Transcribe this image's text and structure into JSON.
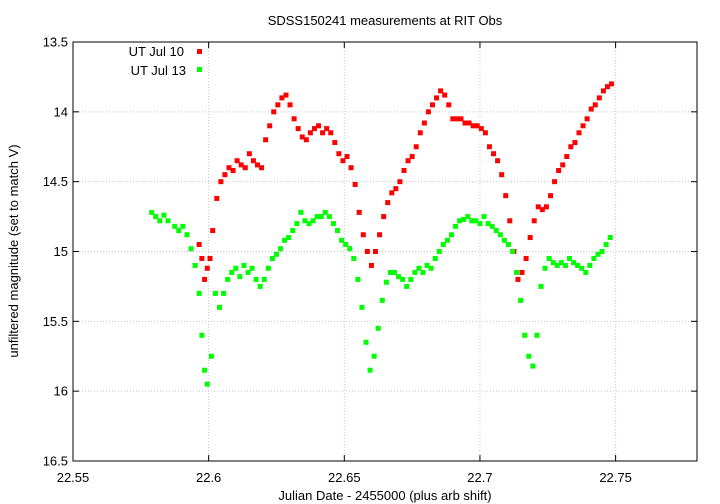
{
  "chart_data": {
    "type": "scatter",
    "title": "SDSS150241 measurements at RIT Obs",
    "xlabel": "Julian Date - 2455000 (plus arb shift)",
    "ylabel": "unfiltered magnitude (set to match V)",
    "xlim": [
      22.55,
      22.78
    ],
    "ylim": [
      13.5,
      16.5
    ],
    "y_inverted": true,
    "grid": true,
    "legend_position": "top-left",
    "xticks": [
      "22.55",
      "22.6",
      "22.65",
      "22.7",
      "22.75"
    ],
    "yticks": [
      "13.5",
      "14",
      "14.5",
      "15",
      "15.5",
      "16",
      "16.5"
    ],
    "series": [
      {
        "name": "UT Jul 10",
        "color": "#ff0000",
        "marker": "square",
        "points": [
          [
            22.5965,
            14.95
          ],
          [
            22.5975,
            15.05
          ],
          [
            22.5985,
            15.2
          ],
          [
            22.5995,
            15.12
          ],
          [
            22.6005,
            15.05
          ],
          [
            22.6015,
            14.85
          ],
          [
            22.603,
            14.62
          ],
          [
            22.6045,
            14.5
          ],
          [
            22.606,
            14.45
          ],
          [
            22.6075,
            14.4
          ],
          [
            22.609,
            14.42
          ],
          [
            22.6105,
            14.35
          ],
          [
            22.612,
            14.38
          ],
          [
            22.6135,
            14.4
          ],
          [
            22.615,
            14.3
          ],
          [
            22.6165,
            14.35
          ],
          [
            22.618,
            14.38
          ],
          [
            22.6195,
            14.4
          ],
          [
            22.621,
            14.2
          ],
          [
            22.6225,
            14.1
          ],
          [
            22.624,
            14.0
          ],
          [
            22.6255,
            13.95
          ],
          [
            22.627,
            13.9
          ],
          [
            22.6285,
            13.88
          ],
          [
            22.63,
            13.95
          ],
          [
            22.6315,
            14.05
          ],
          [
            22.633,
            14.12
          ],
          [
            22.6345,
            14.18
          ],
          [
            22.636,
            14.2
          ],
          [
            22.6375,
            14.15
          ],
          [
            22.639,
            14.12
          ],
          [
            22.6405,
            14.1
          ],
          [
            22.642,
            14.15
          ],
          [
            22.6435,
            14.12
          ],
          [
            22.645,
            14.15
          ],
          [
            22.6465,
            14.22
          ],
          [
            22.648,
            14.3
          ],
          [
            22.6495,
            14.35
          ],
          [
            22.651,
            14.32
          ],
          [
            22.6525,
            14.4
          ],
          [
            22.654,
            14.52
          ],
          [
            22.6555,
            14.72
          ],
          [
            22.657,
            14.88
          ],
          [
            22.6585,
            15.0
          ],
          [
            22.66,
            15.1
          ],
          [
            22.6615,
            15.0
          ],
          [
            22.663,
            14.88
          ],
          [
            22.6645,
            14.75
          ],
          [
            22.666,
            14.65
          ],
          [
            22.6675,
            14.58
          ],
          [
            22.669,
            14.55
          ],
          [
            22.6705,
            14.5
          ],
          [
            22.672,
            14.42
          ],
          [
            22.6735,
            14.35
          ],
          [
            22.675,
            14.32
          ],
          [
            22.6765,
            14.25
          ],
          [
            22.678,
            14.15
          ],
          [
            22.6795,
            14.08
          ],
          [
            22.681,
            14.0
          ],
          [
            22.6825,
            13.95
          ],
          [
            22.684,
            13.9
          ],
          [
            22.6855,
            13.85
          ],
          [
            22.687,
            13.88
          ],
          [
            22.6885,
            13.95
          ],
          [
            22.69,
            14.05
          ],
          [
            22.6915,
            14.05
          ],
          [
            22.693,
            14.05
          ],
          [
            22.6945,
            14.08
          ],
          [
            22.696,
            14.08
          ],
          [
            22.6975,
            14.1
          ],
          [
            22.699,
            14.1
          ],
          [
            22.7005,
            14.12
          ],
          [
            22.702,
            14.15
          ],
          [
            22.7035,
            14.25
          ],
          [
            22.705,
            14.3
          ],
          [
            22.7065,
            14.35
          ],
          [
            22.708,
            14.45
          ],
          [
            22.7095,
            14.6
          ],
          [
            22.711,
            14.78
          ],
          [
            22.7125,
            15.0
          ],
          [
            22.714,
            15.2
          ],
          [
            22.7155,
            15.15
          ],
          [
            22.717,
            15.05
          ],
          [
            22.7185,
            14.9
          ],
          [
            22.72,
            14.78
          ],
          [
            22.7215,
            14.68
          ],
          [
            22.723,
            14.7
          ],
          [
            22.7245,
            14.68
          ],
          [
            22.726,
            14.6
          ],
          [
            22.7275,
            14.5
          ],
          [
            22.729,
            14.42
          ],
          [
            22.7305,
            14.38
          ],
          [
            22.732,
            14.32
          ],
          [
            22.7335,
            14.25
          ],
          [
            22.735,
            14.22
          ],
          [
            22.7365,
            14.15
          ],
          [
            22.738,
            14.1
          ],
          [
            22.7395,
            14.05
          ],
          [
            22.741,
            13.98
          ],
          [
            22.7425,
            13.95
          ],
          [
            22.744,
            13.9
          ],
          [
            22.7455,
            13.85
          ],
          [
            22.747,
            13.82
          ],
          [
            22.7485,
            13.8
          ]
        ]
      },
      {
        "name": "UT Jul 13",
        "color": "#00ff00",
        "marker": "square",
        "points": [
          [
            22.579,
            14.72
          ],
          [
            22.5805,
            14.75
          ],
          [
            22.582,
            14.78
          ],
          [
            22.5835,
            14.74
          ],
          [
            22.585,
            14.78
          ],
          [
            22.5875,
            14.82
          ],
          [
            22.589,
            14.85
          ],
          [
            22.5905,
            14.82
          ],
          [
            22.592,
            14.88
          ],
          [
            22.5935,
            14.98
          ],
          [
            22.595,
            15.1
          ],
          [
            22.5965,
            15.3
          ],
          [
            22.5975,
            15.6
          ],
          [
            22.5985,
            15.85
          ],
          [
            22.5995,
            15.95
          ],
          [
            22.601,
            15.75
          ],
          [
            22.6025,
            15.3
          ],
          [
            22.604,
            15.4
          ],
          [
            22.6055,
            15.3
          ],
          [
            22.607,
            15.2
          ],
          [
            22.6085,
            15.15
          ],
          [
            22.61,
            15.12
          ],
          [
            22.6115,
            15.18
          ],
          [
            22.613,
            15.1
          ],
          [
            22.6145,
            15.15
          ],
          [
            22.616,
            15.12
          ],
          [
            22.6175,
            15.2
          ],
          [
            22.619,
            15.25
          ],
          [
            22.6205,
            15.2
          ],
          [
            22.622,
            15.12
          ],
          [
            22.6235,
            15.05
          ],
          [
            22.625,
            15.02
          ],
          [
            22.6265,
            14.98
          ],
          [
            22.628,
            14.92
          ],
          [
            22.6295,
            14.9
          ],
          [
            22.631,
            14.85
          ],
          [
            22.6325,
            14.8
          ],
          [
            22.634,
            14.72
          ],
          [
            22.6355,
            14.78
          ],
          [
            22.637,
            14.8
          ],
          [
            22.6385,
            14.78
          ],
          [
            22.64,
            14.75
          ],
          [
            22.6415,
            14.75
          ],
          [
            22.643,
            14.72
          ],
          [
            22.6445,
            14.75
          ],
          [
            22.646,
            14.8
          ],
          [
            22.6475,
            14.85
          ],
          [
            22.649,
            14.92
          ],
          [
            22.6505,
            14.95
          ],
          [
            22.652,
            14.98
          ],
          [
            22.6535,
            15.05
          ],
          [
            22.655,
            15.2
          ],
          [
            22.6565,
            15.4
          ],
          [
            22.658,
            15.65
          ],
          [
            22.6595,
            15.85
          ],
          [
            22.661,
            15.75
          ],
          [
            22.6625,
            15.55
          ],
          [
            22.664,
            15.35
          ],
          [
            22.6655,
            15.22
          ],
          [
            22.667,
            15.15
          ],
          [
            22.6685,
            15.15
          ],
          [
            22.67,
            15.18
          ],
          [
            22.6715,
            15.2
          ],
          [
            22.673,
            15.25
          ],
          [
            22.6745,
            15.2
          ],
          [
            22.676,
            15.15
          ],
          [
            22.6775,
            15.12
          ],
          [
            22.679,
            15.15
          ],
          [
            22.6805,
            15.1
          ],
          [
            22.682,
            15.12
          ],
          [
            22.6835,
            15.05
          ],
          [
            22.685,
            15.0
          ],
          [
            22.6865,
            14.95
          ],
          [
            22.688,
            14.92
          ],
          [
            22.6895,
            14.88
          ],
          [
            22.691,
            14.82
          ],
          [
            22.6925,
            14.78
          ],
          [
            22.694,
            14.77
          ],
          [
            22.6955,
            14.75
          ],
          [
            22.697,
            14.78
          ],
          [
            22.6985,
            14.78
          ],
          [
            22.7,
            14.8
          ],
          [
            22.7015,
            14.75
          ],
          [
            22.703,
            14.8
          ],
          [
            22.7045,
            14.82
          ],
          [
            22.706,
            14.85
          ],
          [
            22.7075,
            14.88
          ],
          [
            22.709,
            14.92
          ],
          [
            22.7105,
            14.95
          ],
          [
            22.712,
            15.0
          ],
          [
            22.7135,
            15.15
          ],
          [
            22.715,
            15.35
          ],
          [
            22.7165,
            15.6
          ],
          [
            22.718,
            15.75
          ],
          [
            22.7195,
            15.82
          ],
          [
            22.721,
            15.6
          ],
          [
            22.7225,
            15.25
          ],
          [
            22.724,
            15.12
          ],
          [
            22.7255,
            15.05
          ],
          [
            22.727,
            15.08
          ],
          [
            22.7285,
            15.1
          ],
          [
            22.73,
            15.08
          ],
          [
            22.7315,
            15.1
          ],
          [
            22.733,
            15.05
          ],
          [
            22.7345,
            15.08
          ],
          [
            22.736,
            15.1
          ],
          [
            22.7375,
            15.12
          ],
          [
            22.739,
            15.15
          ],
          [
            22.7405,
            15.1
          ],
          [
            22.742,
            15.05
          ],
          [
            22.7435,
            15.02
          ],
          [
            22.745,
            15.0
          ],
          [
            22.7465,
            14.95
          ],
          [
            22.748,
            14.9
          ]
        ]
      }
    ]
  }
}
